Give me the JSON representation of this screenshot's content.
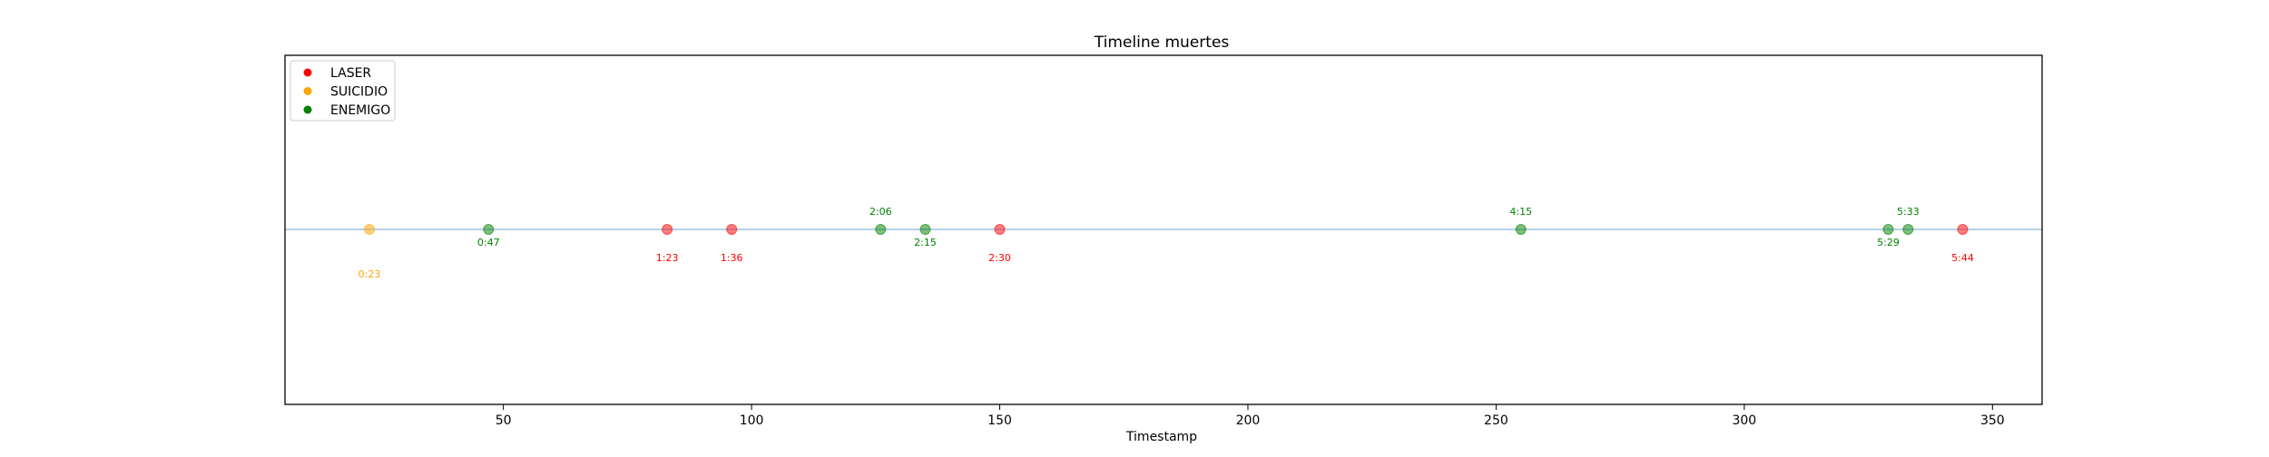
{
  "chart_data": {
    "type": "scatter",
    "title": "Timeline muertes",
    "xlabel": "Timestamp",
    "ylabel": "",
    "xlim": [
      6,
      360
    ],
    "xticks": [
      50,
      100,
      150,
      200,
      250,
      300,
      350
    ],
    "xtick_labels": [
      "50",
      "100",
      "150",
      "200",
      "250",
      "300",
      "350"
    ],
    "grid": false,
    "legend_position": "top-left",
    "baseline": {
      "color": "#1f77b4"
    },
    "legend": [
      {
        "label": "LASER",
        "color": "#ff0000"
      },
      {
        "label": "SUICIDIO",
        "color": "#ffa500"
      },
      {
        "label": "ENEMIGO",
        "color": "#008000"
      }
    ],
    "events": [
      {
        "x": 23,
        "label": "0:23",
        "type": "SUICIDIO",
        "color": "#ffa500",
        "label_side": "below-far"
      },
      {
        "x": 47,
        "label": "0:47",
        "type": "ENEMIGO",
        "color": "#008000",
        "label_side": "below"
      },
      {
        "x": 83,
        "label": "1:23",
        "type": "LASER",
        "color": "#ff0000",
        "label_side": "below-mid"
      },
      {
        "x": 96,
        "label": "1:36",
        "type": "LASER",
        "color": "#ff0000",
        "label_side": "below-mid"
      },
      {
        "x": 126,
        "label": "2:06",
        "type": "ENEMIGO",
        "color": "#008000",
        "label_side": "above"
      },
      {
        "x": 135,
        "label": "2:15",
        "type": "ENEMIGO",
        "color": "#008000",
        "label_side": "below"
      },
      {
        "x": 150,
        "label": "2:30",
        "type": "LASER",
        "color": "#ff0000",
        "label_side": "below-mid"
      },
      {
        "x": 255,
        "label": "4:15",
        "type": "ENEMIGO",
        "color": "#008000",
        "label_side": "above"
      },
      {
        "x": 329,
        "label": "5:29",
        "type": "ENEMIGO",
        "color": "#008000",
        "label_side": "below"
      },
      {
        "x": 333,
        "label": "5:33",
        "type": "ENEMIGO",
        "color": "#008000",
        "label_side": "above"
      },
      {
        "x": 344,
        "label": "5:44",
        "type": "LASER",
        "color": "#ff0000",
        "label_side": "below-mid"
      }
    ]
  }
}
